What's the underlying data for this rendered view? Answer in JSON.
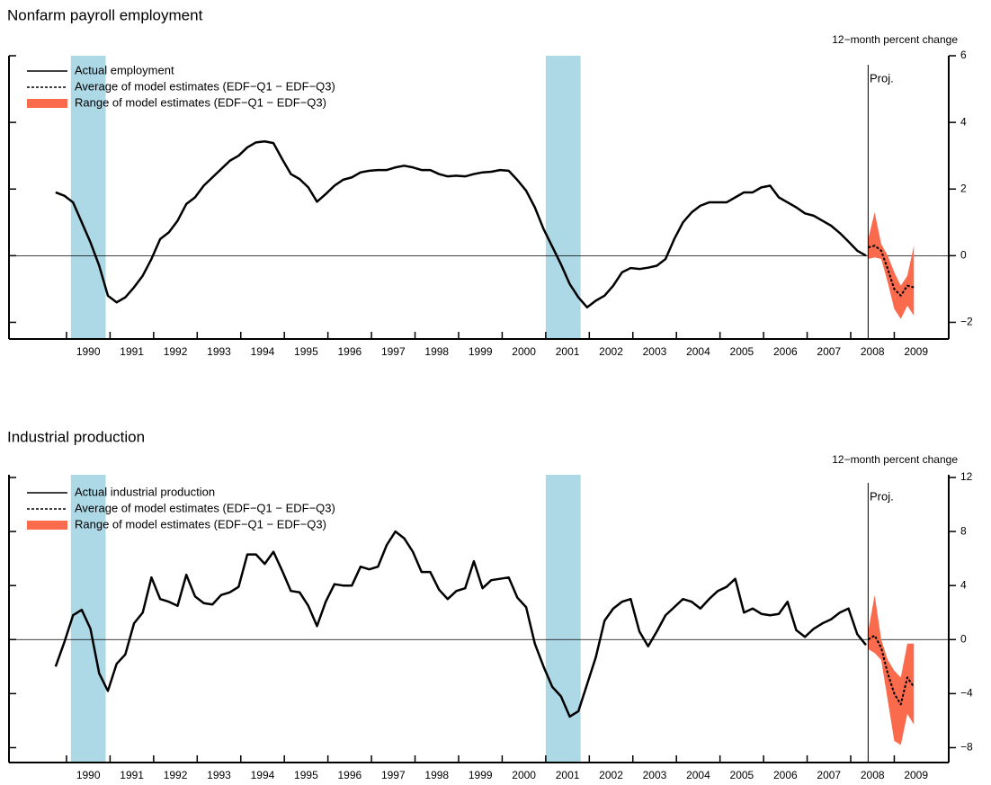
{
  "chart_data": [
    {
      "type": "line",
      "title": "Nonfarm payroll employment",
      "y_axis_label": "12−month percent change",
      "x": [
        1989.75,
        1989.95,
        1990.15,
        1990.35,
        1990.55,
        1990.75,
        1990.95,
        1991.15,
        1991.35,
        1991.55,
        1991.75,
        1991.95,
        1992.15,
        1992.35,
        1992.55,
        1992.75,
        1992.95,
        1993.15,
        1993.35,
        1993.55,
        1993.75,
        1993.95,
        1994.15,
        1994.35,
        1994.55,
        1994.75,
        1994.95,
        1995.15,
        1995.35,
        1995.55,
        1995.75,
        1995.95,
        1996.15,
        1996.35,
        1996.55,
        1996.75,
        1996.95,
        1997.15,
        1997.35,
        1997.55,
        1997.75,
        1997.95,
        1998.15,
        1998.35,
        1998.55,
        1998.75,
        1998.95,
        1999.15,
        1999.35,
        1999.55,
        1999.75,
        1999.95,
        2000.15,
        2000.35,
        2000.55,
        2000.75,
        2000.95,
        2001.15,
        2001.35,
        2001.55,
        2001.75,
        2001.95,
        2002.15,
        2002.35,
        2002.55,
        2002.75,
        2002.95,
        2003.15,
        2003.35,
        2003.55,
        2003.75,
        2003.95,
        2004.15,
        2004.35,
        2004.55,
        2004.75,
        2004.95,
        2005.15,
        2005.35,
        2005.55,
        2005.75,
        2005.95,
        2006.15,
        2006.35,
        2006.55,
        2006.75,
        2006.95,
        2007.15,
        2007.35,
        2007.55,
        2007.75,
        2007.95,
        2008.15,
        2008.35
      ],
      "series": [
        {
          "name": "Actual employment",
          "color": "#000000",
          "style": "solid",
          "values": [
            1.9,
            1.8,
            1.6,
            1.0,
            0.4,
            -0.3,
            -1.2,
            -1.4,
            -1.25,
            -0.95,
            -0.6,
            -0.1,
            0.5,
            0.7,
            1.05,
            1.55,
            1.75,
            2.1,
            2.35,
            2.6,
            2.85,
            3.0,
            3.25,
            3.4,
            3.43,
            3.38,
            2.9,
            2.45,
            2.3,
            2.05,
            1.62,
            1.85,
            2.1,
            2.28,
            2.35,
            2.5,
            2.55,
            2.57,
            2.57,
            2.65,
            2.7,
            2.65,
            2.57,
            2.57,
            2.45,
            2.38,
            2.4,
            2.38,
            2.45,
            2.5,
            2.52,
            2.57,
            2.55,
            2.27,
            1.95,
            1.45,
            0.8,
            0.27,
            -0.26,
            -0.85,
            -1.25,
            -1.55,
            -1.35,
            -1.2,
            -0.9,
            -0.5,
            -0.37,
            -0.4,
            -0.36,
            -0.3,
            -0.1,
            0.5,
            1.0,
            1.3,
            1.5,
            1.6,
            1.6,
            1.6,
            1.75,
            1.9,
            1.9,
            2.05,
            2.1,
            1.75,
            1.6,
            1.45,
            1.27,
            1.2,
            1.05,
            0.9,
            0.68,
            0.42,
            0.15,
            0.0
          ]
        },
        {
          "name": "Average of model estimates (EDF−Q1 − EDF−Q3)",
          "color": "#000000",
          "style": "dashed",
          "x": [
            2008.4,
            2008.55,
            2008.7,
            2008.85,
            2009.0,
            2009.15,
            2009.3,
            2009.45
          ],
          "values": [
            0.25,
            0.3,
            0.15,
            -0.4,
            -1.0,
            -1.2,
            -0.9,
            -0.95
          ]
        },
        {
          "name": "Range of model estimates (EDF−Q1 − EDF−Q3)",
          "color": "#fa6a4d",
          "style": "band",
          "x": [
            2008.4,
            2008.55,
            2008.7,
            2008.85,
            2009.0,
            2009.15,
            2009.3,
            2009.45
          ],
          "low": [
            -0.1,
            -0.05,
            -0.1,
            -0.8,
            -1.6,
            -1.9,
            -1.5,
            -1.8
          ],
          "high": [
            0.5,
            1.3,
            0.35,
            0.0,
            -0.5,
            -0.9,
            -0.6,
            0.3
          ]
        }
      ],
      "xlim": [
        1988.68,
        2010.25
      ],
      "xticks": [
        1990,
        1991,
        1992,
        1993,
        1994,
        1995,
        1996,
        1997,
        1998,
        1999,
        2000,
        2001,
        2002,
        2003,
        2004,
        2005,
        2006,
        2007,
        2008,
        2009
      ],
      "ylim": [
        -2.5,
        6
      ],
      "yticks": [
        {
          "value": -2,
          "label": "−2"
        },
        0,
        2,
        4,
        6
      ],
      "shaded_periods": [
        [
          1990.1,
          1990.9
        ],
        [
          2001.0,
          2001.8
        ]
      ],
      "shade_color": "#add8e6",
      "projection_start": 2008.4,
      "projection_label": "Proj.",
      "zero_line": true,
      "legend": "upper left"
    },
    {
      "type": "line",
      "title": "Industrial production",
      "y_axis_label": "12−month percent change",
      "x": [
        1989.75,
        1989.95,
        1990.15,
        1990.35,
        1990.55,
        1990.75,
        1990.95,
        1991.15,
        1991.35,
        1991.55,
        1991.75,
        1991.95,
        1992.15,
        1992.35,
        1992.55,
        1992.75,
        1992.95,
        1993.15,
        1993.35,
        1993.55,
        1993.75,
        1993.95,
        1994.15,
        1994.35,
        1994.55,
        1994.75,
        1994.95,
        1995.15,
        1995.35,
        1995.55,
        1995.75,
        1995.95,
        1996.15,
        1996.35,
        1996.55,
        1996.75,
        1996.95,
        1997.15,
        1997.35,
        1997.55,
        1997.75,
        1997.95,
        1998.15,
        1998.35,
        1998.55,
        1998.75,
        1998.95,
        1999.15,
        1999.35,
        1999.55,
        1999.75,
        1999.95,
        2000.15,
        2000.35,
        2000.55,
        2000.75,
        2000.95,
        2001.15,
        2001.35,
        2001.55,
        2001.75,
        2001.95,
        2002.15,
        2002.35,
        2002.55,
        2002.75,
        2002.95,
        2003.15,
        2003.35,
        2003.55,
        2003.75,
        2003.95,
        2004.15,
        2004.35,
        2004.55,
        2004.75,
        2004.95,
        2005.15,
        2005.35,
        2005.55,
        2005.75,
        2005.95,
        2006.15,
        2006.35,
        2006.55,
        2006.75,
        2006.95,
        2007.15,
        2007.35,
        2007.55,
        2007.75,
        2007.95,
        2008.15,
        2008.35
      ],
      "series": [
        {
          "name": "Actual industrial production",
          "color": "#000000",
          "style": "solid",
          "values": [
            -2.0,
            -0.2,
            1.8,
            2.2,
            0.8,
            -2.5,
            -3.8,
            -1.8,
            -1.1,
            1.2,
            2.0,
            4.6,
            3.0,
            2.8,
            2.5,
            4.8,
            3.2,
            2.7,
            2.6,
            3.3,
            3.5,
            3.9,
            6.3,
            6.3,
            5.6,
            6.5,
            5.1,
            3.6,
            3.5,
            2.5,
            1.0,
            2.8,
            4.1,
            4.0,
            4.0,
            5.4,
            5.2,
            5.4,
            7.0,
            8.0,
            7.5,
            6.5,
            5.0,
            5.0,
            3.7,
            3.0,
            3.6,
            3.8,
            5.8,
            3.8,
            4.4,
            4.5,
            4.6,
            3.1,
            2.4,
            -0.3,
            -2.0,
            -3.5,
            -4.2,
            -5.7,
            -5.3,
            -3.3,
            -1.3,
            1.4,
            2.3,
            2.8,
            3.0,
            0.6,
            -0.5,
            0.6,
            1.8,
            2.4,
            3.0,
            2.8,
            2.3,
            3.0,
            3.6,
            3.9,
            4.5,
            2.0,
            2.3,
            1.9,
            1.8,
            1.9,
            2.8,
            0.7,
            0.2,
            0.8,
            1.2,
            1.5,
            2.0,
            2.3,
            0.4,
            -0.4
          ]
        },
        {
          "name": "Average of model estimates (EDF−Q1 − EDF−Q3)",
          "color": "#000000",
          "style": "dashed",
          "x": [
            2008.4,
            2008.55,
            2008.7,
            2008.85,
            2009.0,
            2009.15,
            2009.3,
            2009.45
          ],
          "values": [
            0.0,
            0.3,
            -0.6,
            -2.5,
            -4.0,
            -4.8,
            -2.8,
            -3.5
          ]
        },
        {
          "name": "Range of model estimates (EDF−Q1 − EDF−Q3)",
          "color": "#fa6a4d",
          "style": "band",
          "x": [
            2008.4,
            2008.55,
            2008.7,
            2008.85,
            2009.0,
            2009.15,
            2009.3,
            2009.45
          ],
          "low": [
            -0.7,
            -1.0,
            -1.5,
            -4.5,
            -7.5,
            -7.8,
            -5.5,
            -6.3
          ],
          "high": [
            0.6,
            3.3,
            0.0,
            -1.5,
            -2.3,
            -2.8,
            -0.3,
            -0.3
          ]
        }
      ],
      "xlim": [
        1988.68,
        2010.25
      ],
      "xticks": [
        1990,
        1991,
        1992,
        1993,
        1994,
        1995,
        1996,
        1997,
        1998,
        1999,
        2000,
        2001,
        2002,
        2003,
        2004,
        2005,
        2006,
        2007,
        2008,
        2009
      ],
      "ylim": [
        -9.1,
        12.2
      ],
      "yticks": [
        {
          "value": -8,
          "label": "−8"
        },
        {
          "value": -4,
          "label": "−4"
        },
        0,
        4,
        8,
        12
      ],
      "shaded_periods": [
        [
          1990.1,
          1990.9
        ],
        [
          2001.0,
          2001.8
        ]
      ],
      "shade_color": "#add8e6",
      "projection_start": 2008.4,
      "projection_label": "Proj.",
      "zero_line": true,
      "legend": "upper left"
    }
  ]
}
